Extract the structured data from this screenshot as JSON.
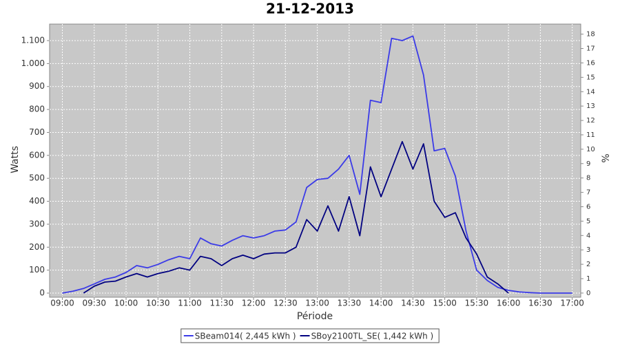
{
  "chart_data": {
    "type": "line",
    "title": "21-12-2013",
    "x_label": "Période",
    "y_label": "Watts",
    "y2_label": "%",
    "x": [
      "09:00",
      "09:10",
      "09:20",
      "09:30",
      "09:40",
      "09:50",
      "10:00",
      "10:10",
      "10:20",
      "10:30",
      "10:40",
      "10:50",
      "11:00",
      "11:10",
      "11:20",
      "11:30",
      "11:40",
      "11:50",
      "12:00",
      "12:10",
      "12:20",
      "12:30",
      "12:40",
      "12:50",
      "13:00",
      "13:10",
      "13:20",
      "13:30",
      "13:40",
      "13:50",
      "14:00",
      "14:10",
      "14:20",
      "14:30",
      "14:40",
      "14:50",
      "15:00",
      "15:10",
      "15:20",
      "15:30",
      "15:40",
      "15:50",
      "16:00",
      "16:10",
      "16:20",
      "16:30",
      "16:40",
      "16:50",
      "17:00"
    ],
    "xlim": [
      "08:48",
      "17:08"
    ],
    "xticks": [
      "09:00",
      "09:30",
      "10:00",
      "10:30",
      "11:00",
      "11:30",
      "12:00",
      "12:30",
      "13:00",
      "13:30",
      "14:00",
      "14:30",
      "15:00",
      "15:30",
      "16:00",
      "16:30",
      "17:00"
    ],
    "ylim": [
      -18,
      1172
    ],
    "yticks": [
      0,
      100,
      200,
      300,
      400,
      500,
      600,
      700,
      800,
      900,
      {
        "value": 1000,
        "label": "1.000"
      },
      {
        "value": 1100,
        "label": "1.100"
      }
    ],
    "y2lim": [
      -0.29,
      18.7
    ],
    "y2ticks": [
      0,
      1,
      2,
      3,
      4,
      5,
      6,
      7,
      8,
      9,
      10,
      11,
      12,
      13,
      14,
      15,
      16,
      17,
      18
    ],
    "grid": true,
    "legend": "bottom",
    "series": [
      {
        "name": "SBeam014( 2,445 kWh )",
        "color": "#3a3ae8",
        "values": [
          0,
          8,
          20,
          40,
          60,
          70,
          90,
          120,
          110,
          125,
          145,
          160,
          150,
          240,
          215,
          205,
          230,
          250,
          240,
          250,
          270,
          275,
          310,
          460,
          495,
          500,
          540,
          600,
          430,
          840,
          830,
          1110,
          1100,
          1120,
          950,
          620,
          630,
          510,
          270,
          100,
          55,
          25,
          12,
          5,
          2,
          0,
          0,
          0,
          0
        ]
      },
      {
        "name": "SBoy2100TL_SE( 1,442 kWh )",
        "color": "#000080",
        "values": [
          null,
          null,
          0,
          30,
          48,
          52,
          70,
          85,
          70,
          85,
          95,
          110,
          100,
          160,
          150,
          120,
          150,
          165,
          150,
          170,
          175,
          175,
          200,
          320,
          270,
          380,
          270,
          420,
          250,
          550,
          420,
          540,
          660,
          540,
          650,
          400,
          330,
          350,
          240,
          170,
          70,
          40,
          0,
          null,
          null,
          null,
          null,
          null,
          null
        ]
      }
    ]
  }
}
